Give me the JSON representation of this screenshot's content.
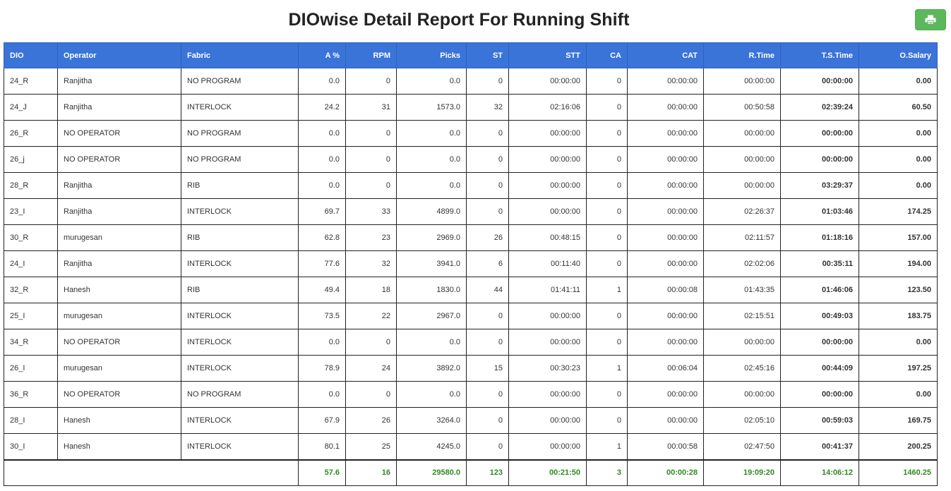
{
  "title": "DIOwise Detail Report For Running Shift",
  "print_icon": "printer-icon",
  "colors": {
    "header_bg": "#3a74d9",
    "button_bg": "#5cb85c",
    "total_text": "#2e8b1f"
  },
  "columns": [
    "DIO",
    "Operator",
    "Fabric",
    "A %",
    "RPM",
    "Picks",
    "ST",
    "STT",
    "CA",
    "CAT",
    "R.Time",
    "T.S.Time",
    "O.Salary"
  ],
  "rows": [
    [
      "24_R",
      "Ranjitha",
      "NO PROGRAM",
      "0.0",
      "0",
      "0.0",
      "0",
      "00:00:00",
      "0",
      "00:00:00",
      "00:00:00",
      "00:00:00",
      "0.00"
    ],
    [
      "24_J",
      "Ranjitha",
      "INTERLOCK",
      "24.2",
      "31",
      "1573.0",
      "32",
      "02:16:06",
      "0",
      "00:00:00",
      "00:50:58",
      "02:39:24",
      "60.50"
    ],
    [
      "26_R",
      "NO OPERATOR",
      "NO PROGRAM",
      "0.0",
      "0",
      "0.0",
      "0",
      "00:00:00",
      "0",
      "00:00:00",
      "00:00:00",
      "00:00:00",
      "0.00"
    ],
    [
      "26_j",
      "NO OPERATOR",
      "NO PROGRAM",
      "0.0",
      "0",
      "0.0",
      "0",
      "00:00:00",
      "0",
      "00:00:00",
      "00:00:00",
      "00:00:00",
      "0.00"
    ],
    [
      "28_R",
      "Ranjitha",
      "RIB",
      "0.0",
      "0",
      "0.0",
      "0",
      "00:00:00",
      "0",
      "00:00:00",
      "00:00:00",
      "03:29:37",
      "0.00"
    ],
    [
      "23_I",
      "Ranjitha",
      "INTERLOCK",
      "69.7",
      "33",
      "4899.0",
      "0",
      "00:00:00",
      "0",
      "00:00:00",
      "02:26:37",
      "01:03:46",
      "174.25"
    ],
    [
      "30_R",
      "murugesan",
      "RIB",
      "62.8",
      "23",
      "2969.0",
      "26",
      "00:48:15",
      "0",
      "00:00:00",
      "02:11:57",
      "01:18:16",
      "157.00"
    ],
    [
      "24_I",
      "Ranjitha",
      "INTERLOCK",
      "77.6",
      "32",
      "3941.0",
      "6",
      "00:11:40",
      "0",
      "00:00:00",
      "02:02:06",
      "00:35:11",
      "194.00"
    ],
    [
      "32_R",
      "Hanesh",
      "RIB",
      "49.4",
      "18",
      "1830.0",
      "44",
      "01:41:11",
      "1",
      "00:00:08",
      "01:43:35",
      "01:46:06",
      "123.50"
    ],
    [
      "25_I",
      "murugesan",
      "INTERLOCK",
      "73.5",
      "22",
      "2967.0",
      "0",
      "00:00:00",
      "0",
      "00:00:00",
      "02:15:51",
      "00:49:03",
      "183.75"
    ],
    [
      "34_R",
      "NO OPERATOR",
      "INTERLOCK",
      "0.0",
      "0",
      "0.0",
      "0",
      "00:00:00",
      "0",
      "00:00:00",
      "00:00:00",
      "00:00:00",
      "0.00"
    ],
    [
      "26_I",
      "murugesan",
      "INTERLOCK",
      "78.9",
      "24",
      "3892.0",
      "15",
      "00:30:23",
      "1",
      "00:06:04",
      "02:45:16",
      "00:44:09",
      "197.25"
    ],
    [
      "36_R",
      "NO OPERATOR",
      "NO PROGRAM",
      "0.0",
      "0",
      "0.0",
      "0",
      "00:00:00",
      "0",
      "00:00:00",
      "00:00:00",
      "00:00:00",
      "0.00"
    ],
    [
      "28_I",
      "Hanesh",
      "INTERLOCK",
      "67.9",
      "26",
      "3264.0",
      "0",
      "00:00:00",
      "0",
      "00:00:00",
      "02:05:10",
      "00:59:03",
      "169.75"
    ],
    [
      "30_I",
      "Hanesh",
      "INTERLOCK",
      "80.1",
      "25",
      "4245.0",
      "0",
      "00:00:00",
      "1",
      "00:00:58",
      "02:47:50",
      "00:41:37",
      "200.25"
    ]
  ],
  "totals": [
    "57.6",
    "16",
    "29580.0",
    "123",
    "00:21:50",
    "3",
    "00:00:28",
    "19:09:20",
    "14:06:12",
    "1460.25"
  ]
}
